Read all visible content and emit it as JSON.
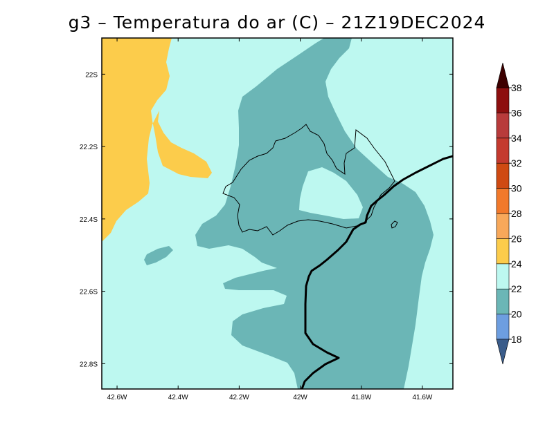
{
  "title": "g3 – Temperatura do ar (C) – 21Z19DEC2024",
  "map": {
    "lon_range": [
      -42.65,
      -41.5
    ],
    "lat_range": [
      -22.87,
      -21.9
    ],
    "x_ticks": [
      "42.6W",
      "42.4W",
      "42.2W",
      "42W",
      "41.8W",
      "41.6W"
    ],
    "y_ticks": [
      "22S",
      "22.2S",
      "22.4S",
      "22.6S",
      "22.8S"
    ]
  },
  "colors": {
    "band_22_24": "#bdf8f0",
    "band_20_22": "#6bb6b6",
    "band_24_26": "#fccc4b"
  },
  "colorbar": {
    "labels": [
      "18",
      "20",
      "22",
      "24",
      "26",
      "28",
      "30",
      "32",
      "34",
      "36",
      "38"
    ],
    "colors": [
      "#6d9ee0",
      "#6bb6b6",
      "#bdf8f0",
      "#fccc4b",
      "#f8a85a",
      "#f2792b",
      "#cf4a12",
      "#c43a2e",
      "#b83b3b",
      "#8d0f0f"
    ],
    "under_color": "#3a5c8a",
    "over_color": "#3d0000"
  }
}
